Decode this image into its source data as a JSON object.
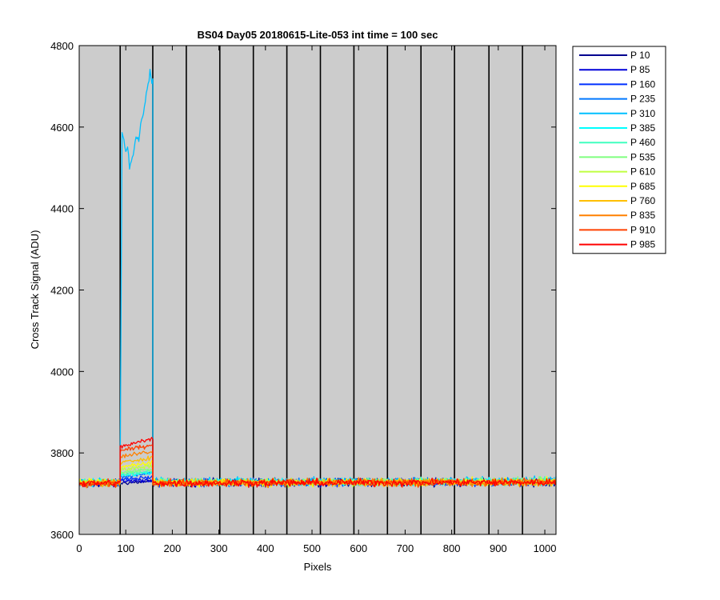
{
  "chart_data": {
    "type": "line",
    "title": "BS04 Day05 20180615-Lite-053 int time = 100 sec",
    "xlabel": "Pixels",
    "ylabel": "Cross Track Signal (ADU)",
    "xlim": [
      0,
      1024
    ],
    "ylim": [
      3600,
      4800
    ],
    "xticks": [
      0,
      100,
      200,
      300,
      400,
      500,
      600,
      700,
      800,
      900,
      1000
    ],
    "yticks": [
      3600,
      3800,
      4000,
      4200,
      4400,
      4600,
      4800
    ],
    "background": "#cccccc",
    "vertical_lines_x": [
      88,
      158,
      230,
      302,
      374,
      446,
      518,
      590,
      662,
      734,
      806,
      880,
      952
    ],
    "legend": {
      "position": "outside-right"
    },
    "baseline_level": 3728,
    "series": [
      {
        "name": "P 10",
        "color": "#00008f",
        "segments": [
          {
            "x": [
              0,
              88
            ],
            "y": [
              3725,
              3726
            ]
          },
          {
            "x": [
              88,
              158
            ],
            "y": [
              3726,
              3730
            ]
          },
          {
            "x": [
              158,
              1024
            ],
            "y": [
              3727,
              3728
            ]
          }
        ]
      },
      {
        "name": "P 85",
        "color": "#0000d9",
        "segments": [
          {
            "x": [
              0,
              88
            ],
            "y": [
              3725,
              3726
            ]
          },
          {
            "x": [
              88,
              158
            ],
            "y": [
              3730,
              3734
            ]
          },
          {
            "x": [
              158,
              1024
            ],
            "y": [
              3727,
              3728
            ]
          }
        ]
      },
      {
        "name": "P 160",
        "color": "#0030ff",
        "segments": [
          {
            "x": [
              0,
              88
            ],
            "y": [
              3726,
              3727
            ]
          },
          {
            "x": [
              88,
              158
            ],
            "y": [
              3735,
              3740
            ]
          },
          {
            "x": [
              158,
              1024
            ],
            "y": [
              3727,
              3729
            ]
          }
        ]
      },
      {
        "name": "P 235",
        "color": "#0078ff",
        "segments": [
          {
            "x": [
              0,
              88
            ],
            "y": [
              3726,
              3727
            ]
          },
          {
            "x": [
              88,
              158
            ],
            "y": [
              3742,
              3750
            ]
          },
          {
            "x": [
              158,
              1024
            ],
            "y": [
              3728,
              3729
            ]
          }
        ]
      },
      {
        "name": "P 310",
        "color": "#00bfff",
        "segments": [
          {
            "x": [
              0,
              88
            ],
            "y": [
              3728,
              3730
            ]
          },
          {
            "x": [
              88,
              92,
              96,
              100,
              104,
              108,
              112,
              116,
              120,
              124,
              128,
              132,
              136,
              140,
              144,
              148,
              152,
              156,
              158
            ],
            "y": [
              3760,
              4590,
              4560,
              4540,
              4550,
              4500,
              4520,
              4530,
              4560,
              4580,
              4570,
              4600,
              4620,
              4650,
              4680,
              4700,
              4740,
              4710,
              4720
            ]
          },
          {
            "x": [
              158,
              1024
            ],
            "y": [
              3730,
              3732
            ]
          }
        ]
      },
      {
        "name": "P 385",
        "color": "#00ffff",
        "segments": [
          {
            "x": [
              0,
              88
            ],
            "y": [
              3727,
              3728
            ]
          },
          {
            "x": [
              88,
              158
            ],
            "y": [
              3745,
              3752
            ]
          },
          {
            "x": [
              158,
              1024
            ],
            "y": [
              3728,
              3730
            ]
          }
        ]
      },
      {
        "name": "P 460",
        "color": "#40ffbf",
        "segments": [
          {
            "x": [
              0,
              88
            ],
            "y": [
              3727,
              3728
            ]
          },
          {
            "x": [
              88,
              158
            ],
            "y": [
              3748,
              3755
            ]
          },
          {
            "x": [
              158,
              1024
            ],
            "y": [
              3728,
              3730
            ]
          }
        ]
      },
      {
        "name": "P 535",
        "color": "#7fff7f",
        "segments": [
          {
            "x": [
              0,
              88
            ],
            "y": [
              3727,
              3728
            ]
          },
          {
            "x": [
              88,
              158
            ],
            "y": [
              3752,
              3760
            ]
          },
          {
            "x": [
              158,
              1024
            ],
            "y": [
              3728,
              3730
            ]
          }
        ]
      },
      {
        "name": "P 610",
        "color": "#bfff40",
        "segments": [
          {
            "x": [
              0,
              88
            ],
            "y": [
              3726,
              3728
            ]
          },
          {
            "x": [
              88,
              158
            ],
            "y": [
              3758,
              3768
            ]
          },
          {
            "x": [
              158,
              1024
            ],
            "y": [
              3727,
              3729
            ]
          }
        ]
      },
      {
        "name": "P 685",
        "color": "#ffff00",
        "segments": [
          {
            "x": [
              0,
              88
            ],
            "y": [
              3726,
              3727
            ]
          },
          {
            "x": [
              88,
              158
            ],
            "y": [
              3765,
              3778
            ]
          },
          {
            "x": [
              158,
              1024
            ],
            "y": [
              3727,
              3729
            ]
          }
        ]
      },
      {
        "name": "P 760",
        "color": "#ffbf00",
        "segments": [
          {
            "x": [
              0,
              88
            ],
            "y": [
              3726,
              3727
            ]
          },
          {
            "x": [
              88,
              158
            ],
            "y": [
              3775,
              3790
            ]
          },
          {
            "x": [
              158,
              1024
            ],
            "y": [
              3727,
              3728
            ]
          }
        ]
      },
      {
        "name": "P 835",
        "color": "#ff8000",
        "segments": [
          {
            "x": [
              0,
              88
            ],
            "y": [
              3726,
              3727
            ]
          },
          {
            "x": [
              88,
              158
            ],
            "y": [
              3790,
              3805
            ]
          },
          {
            "x": [
              158,
              1024
            ],
            "y": [
              3727,
              3728
            ]
          }
        ]
      },
      {
        "name": "P 910",
        "color": "#ff4000",
        "segments": [
          {
            "x": [
              0,
              88
            ],
            "y": [
              3725,
              3726
            ]
          },
          {
            "x": [
              88,
              158
            ],
            "y": [
              3805,
              3820
            ]
          },
          {
            "x": [
              158,
              1024
            ],
            "y": [
              3726,
              3728
            ]
          }
        ]
      },
      {
        "name": "P 985",
        "color": "#ff0000",
        "segments": [
          {
            "x": [
              0,
              88
            ],
            "y": [
              3725,
              3726
            ]
          },
          {
            "x": [
              88,
              158
            ],
            "y": [
              3815,
              3835
            ]
          },
          {
            "x": [
              158,
              1024
            ],
            "y": [
              3726,
              3728
            ]
          }
        ]
      }
    ]
  }
}
